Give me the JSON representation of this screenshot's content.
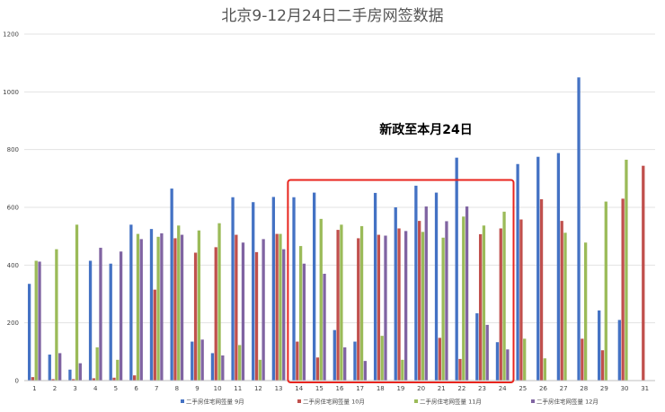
{
  "chart_data": {
    "type": "bar",
    "title": "北京9-12月24日二手房网签数据",
    "annotation": "新政至本月24日",
    "categories": [
      "1",
      "2",
      "3",
      "4",
      "5",
      "6",
      "7",
      "8",
      "9",
      "10",
      "11",
      "12",
      "13",
      "14",
      "15",
      "16",
      "17",
      "18",
      "19",
      "20",
      "21",
      "22",
      "23",
      "24",
      "25",
      "26",
      "27",
      "28",
      "29",
      "30",
      "31"
    ],
    "ylim": [
      0,
      1200
    ],
    "yticks": [
      0,
      200,
      400,
      600,
      800,
      1000,
      1200
    ],
    "grid": true,
    "legend_position": "bottom",
    "highlight_range": [
      "14",
      "24"
    ],
    "series": [
      {
        "name": "二手房住宅网签量 9月",
        "color": "#4472C4",
        "values": [
          335,
          90,
          38,
          415,
          405,
          540,
          525,
          665,
          135,
          95,
          635,
          618,
          636,
          635,
          651,
          175,
          135,
          650,
          600,
          675,
          651,
          772,
          233,
          133,
          750,
          775,
          788,
          1050,
          243,
          210,
          null
        ]
      },
      {
        "name": "二手房住宅网签量 10月",
        "color": "#C0504D",
        "values": [
          12,
          5,
          5,
          8,
          10,
          18,
          315,
          493,
          443,
          462,
          505,
          445,
          508,
          135,
          80,
          522,
          493,
          505,
          527,
          553,
          148,
          75,
          507,
          527,
          558,
          628,
          553,
          145,
          105,
          630,
          744
        ]
      },
      {
        "name": "二手房住宅网签量 11月",
        "color": "#9BBB59",
        "values": [
          415,
          455,
          540,
          115,
          72,
          508,
          498,
          537,
          520,
          545,
          123,
          72,
          508,
          466,
          560,
          540,
          535,
          155,
          72,
          515,
          495,
          568,
          537,
          585,
          145,
          77,
          512,
          478,
          620,
          765,
          null
        ]
      },
      {
        "name": "二手房住宅网签量 12月",
        "color": "#8064A2",
        "values": [
          412,
          95,
          60,
          460,
          447,
          490,
          510,
          505,
          142,
          87,
          478,
          490,
          455,
          405,
          370,
          115,
          68,
          502,
          518,
          603,
          552,
          603,
          193,
          108,
          null,
          null,
          null,
          null,
          null,
          null,
          null
        ]
      }
    ]
  }
}
